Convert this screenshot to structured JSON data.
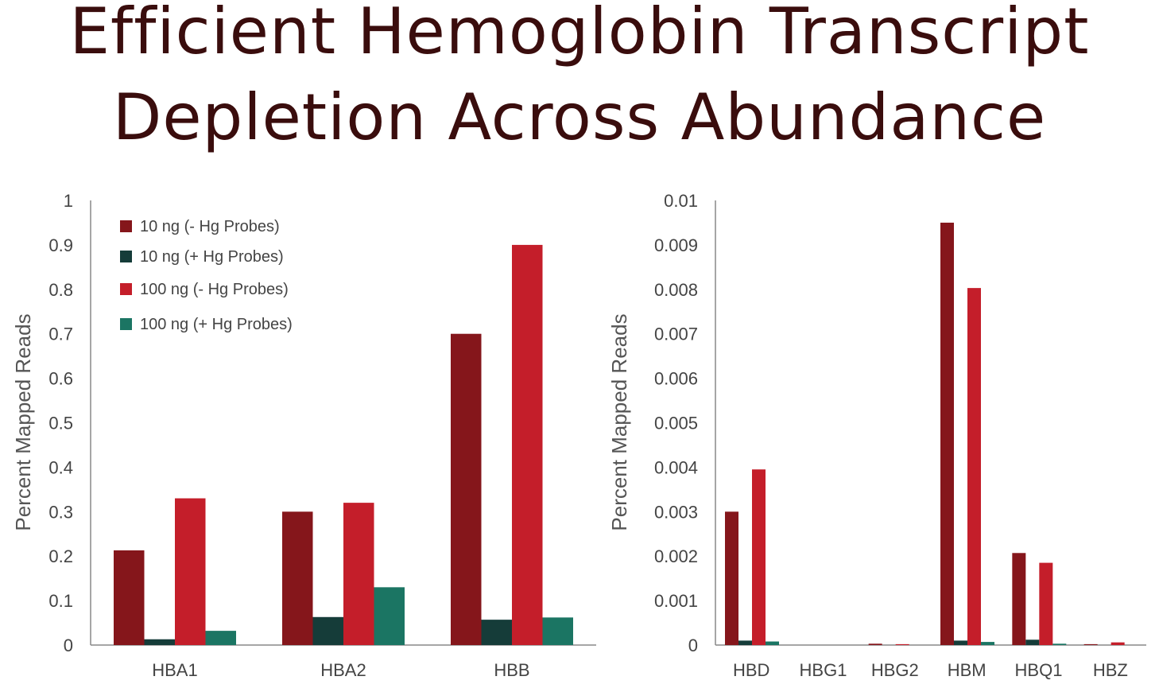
{
  "title_lines": [
    "Efficient Hemoglobin Transcript",
    "Depletion Across Abundance"
  ],
  "chart_data": [
    {
      "type": "bar",
      "categories": [
        "HBA1",
        "HBA2",
        "HBB"
      ],
      "ylabel": "Percent Mapped Reads",
      "ylim": [
        0,
        1
      ],
      "yticks": [
        "0",
        "0.1",
        "0.2",
        "0.3",
        "0.4",
        "0.5",
        "0.6",
        "0.7",
        "0.8",
        "0.9",
        "1"
      ],
      "legend": "top-left",
      "series": [
        {
          "name": "10 ng (- Hg Probes)",
          "color": "#85161b",
          "values": [
            0.213,
            0.3,
            0.7
          ]
        },
        {
          "name": "10 ng (+ Hg Probes)",
          "color": "#153c39",
          "values": [
            0.013,
            0.063,
            0.057
          ]
        },
        {
          "name": "100 ng (- Hg Probes)",
          "color": "#c41e2a",
          "values": [
            0.33,
            0.32,
            0.9
          ]
        },
        {
          "name": "100 ng (+ Hg Probes)",
          "color": "#1b7563",
          "values": [
            0.032,
            0.13,
            0.062
          ]
        }
      ]
    },
    {
      "type": "bar",
      "categories": [
        "HBD",
        "HBG1",
        "HBG2",
        "HBM",
        "HBQ1",
        "HBZ"
      ],
      "ylabel": "Percent Mapped Reads",
      "ylim": [
        0,
        0.01
      ],
      "yticks": [
        "0",
        "0.001",
        "0.002",
        "0.003",
        "0.004",
        "0.005",
        "0.006",
        "0.007",
        "0.008",
        "0.009",
        "0.01"
      ],
      "series": [
        {
          "color": "#85161b",
          "values": [
            0.003,
            0.0,
            3e-05,
            0.0095,
            0.00207,
            2e-05
          ]
        },
        {
          "color": "#153c39",
          "values": [
            0.0001,
            0.0,
            0.0,
            0.0001,
            0.00012,
            0.0
          ]
        },
        {
          "color": "#c41e2a",
          "values": [
            0.00395,
            0.0,
            2e-05,
            0.00803,
            0.00185,
            6e-05
          ]
        },
        {
          "color": "#1b7563",
          "values": [
            8e-05,
            0.0,
            0.0,
            7e-05,
            3e-05,
            0.0
          ]
        }
      ]
    }
  ]
}
